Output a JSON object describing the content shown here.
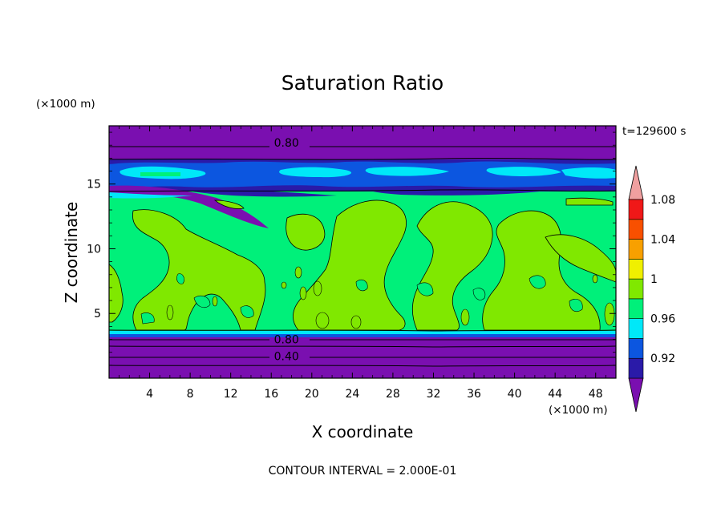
{
  "chart_data": {
    "type": "contour",
    "title": "Saturation Ratio",
    "xlabel": "X coordinate",
    "ylabel": "Z coordinate",
    "x_unit": "(×1000 m)",
    "y_unit": "(×1000 m)",
    "time_label": "t=129600 s",
    "footer": "CONTOUR INTERVAL = 2.000E-01",
    "xlim": [
      0,
      50
    ],
    "ylim": [
      0,
      19.5
    ],
    "x_ticks": [
      4,
      8,
      12,
      16,
      20,
      24,
      28,
      32,
      36,
      40,
      44,
      48
    ],
    "y_ticks": [
      5,
      10,
      15
    ],
    "contour_labels": [
      {
        "text": "0.80",
        "x": 17.5,
        "z": 18.2
      },
      {
        "text": "0.80",
        "x": 17.5,
        "z": 3.0
      },
      {
        "text": "0.40",
        "x": 17.5,
        "z": 1.7
      }
    ],
    "colorbar": {
      "levels": [
        "0.92",
        "0.96",
        "1",
        "1.04",
        "1.08"
      ],
      "colors": [
        "#7a0fb0",
        "#2a1aa8",
        "#0c56e0",
        "#00e8f8",
        "#00f07a",
        "#80e800",
        "#f0f000",
        "#f8a000",
        "#f85000",
        "#f01818",
        "#f0a0a0"
      ],
      "extend": "both"
    }
  }
}
